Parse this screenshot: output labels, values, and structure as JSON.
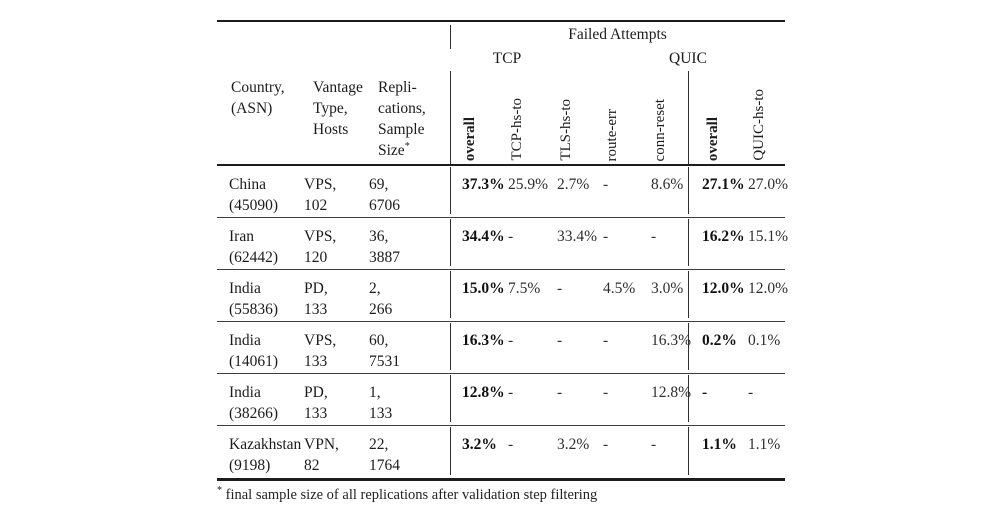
{
  "table": {
    "header": {
      "failed_attempts": "Failed Attempts",
      "tcp_group": "TCP",
      "quic_group": "QUIC",
      "country_lines": {
        "l1": "Country,",
        "l2": "(ASN)"
      },
      "vantage_lines": {
        "l1": "Vantage",
        "l2": "Type,",
        "l3": "Hosts"
      },
      "repl_lines": {
        "l1": "Repli-",
        "l2": "cations,",
        "l3": "Sample",
        "l4": "Size",
        "sup": "*"
      },
      "rotated": [
        "overall",
        "TCP-hs-to",
        "TLS-hs-to",
        "route-err",
        "conn-reset",
        "overall",
        "QUIC-hs-to"
      ]
    },
    "rows": [
      {
        "country": "China",
        "asn": "(45090)",
        "vantage": "VPS,",
        "hosts": "102",
        "replications": "69,",
        "sample": "6706",
        "tcp_overall": "37.3%",
        "tcp_hs_to": "25.9%",
        "tls_hs_to": "2.7%",
        "route_err": "-",
        "conn_reset": "8.6%",
        "quic_overall": "27.1%",
        "quic_hs_to": "27.0%"
      },
      {
        "country": "Iran",
        "asn": "(62442)",
        "vantage": "VPS,",
        "hosts": "120",
        "replications": "36,",
        "sample": "3887",
        "tcp_overall": "34.4%",
        "tcp_hs_to": "-",
        "tls_hs_to": "33.4%",
        "route_err": "-",
        "conn_reset": "-",
        "quic_overall": "16.2%",
        "quic_hs_to": "15.1%"
      },
      {
        "country": "India",
        "asn": "(55836)",
        "vantage": "PD,",
        "hosts": "133",
        "replications": "2,",
        "sample": "266",
        "tcp_overall": "15.0%",
        "tcp_hs_to": "7.5%",
        "tls_hs_to": "-",
        "route_err": "4.5%",
        "conn_reset": "3.0%",
        "quic_overall": "12.0%",
        "quic_hs_to": "12.0%"
      },
      {
        "country": "India",
        "asn": "(14061)",
        "vantage": "VPS,",
        "hosts": "133",
        "replications": "60,",
        "sample": "7531",
        "tcp_overall": "16.3%",
        "tcp_hs_to": "-",
        "tls_hs_to": "-",
        "route_err": "-",
        "conn_reset": "16.3%",
        "quic_overall": "0.2%",
        "quic_hs_to": "0.1%"
      },
      {
        "country": "India",
        "asn": "(38266)",
        "vantage": "PD,",
        "hosts": "133",
        "replications": "1,",
        "sample": "133",
        "tcp_overall": "12.8%",
        "tcp_hs_to": "-",
        "tls_hs_to": "-",
        "route_err": "-",
        "conn_reset": "12.8%",
        "quic_overall": "-",
        "quic_hs_to": "-"
      },
      {
        "country": "Kazakhstan",
        "asn": "(9198)",
        "vantage": "VPN,",
        "hosts": "82",
        "replications": "22,",
        "sample": "1764",
        "tcp_overall": "3.2%",
        "tcp_hs_to": "-",
        "tls_hs_to": "3.2%",
        "route_err": "-",
        "conn_reset": "-",
        "quic_overall": "1.1%",
        "quic_hs_to": "1.1%"
      }
    ]
  },
  "footnote": {
    "marker": "*",
    "text": " final sample size of all replications after validation step filtering"
  }
}
